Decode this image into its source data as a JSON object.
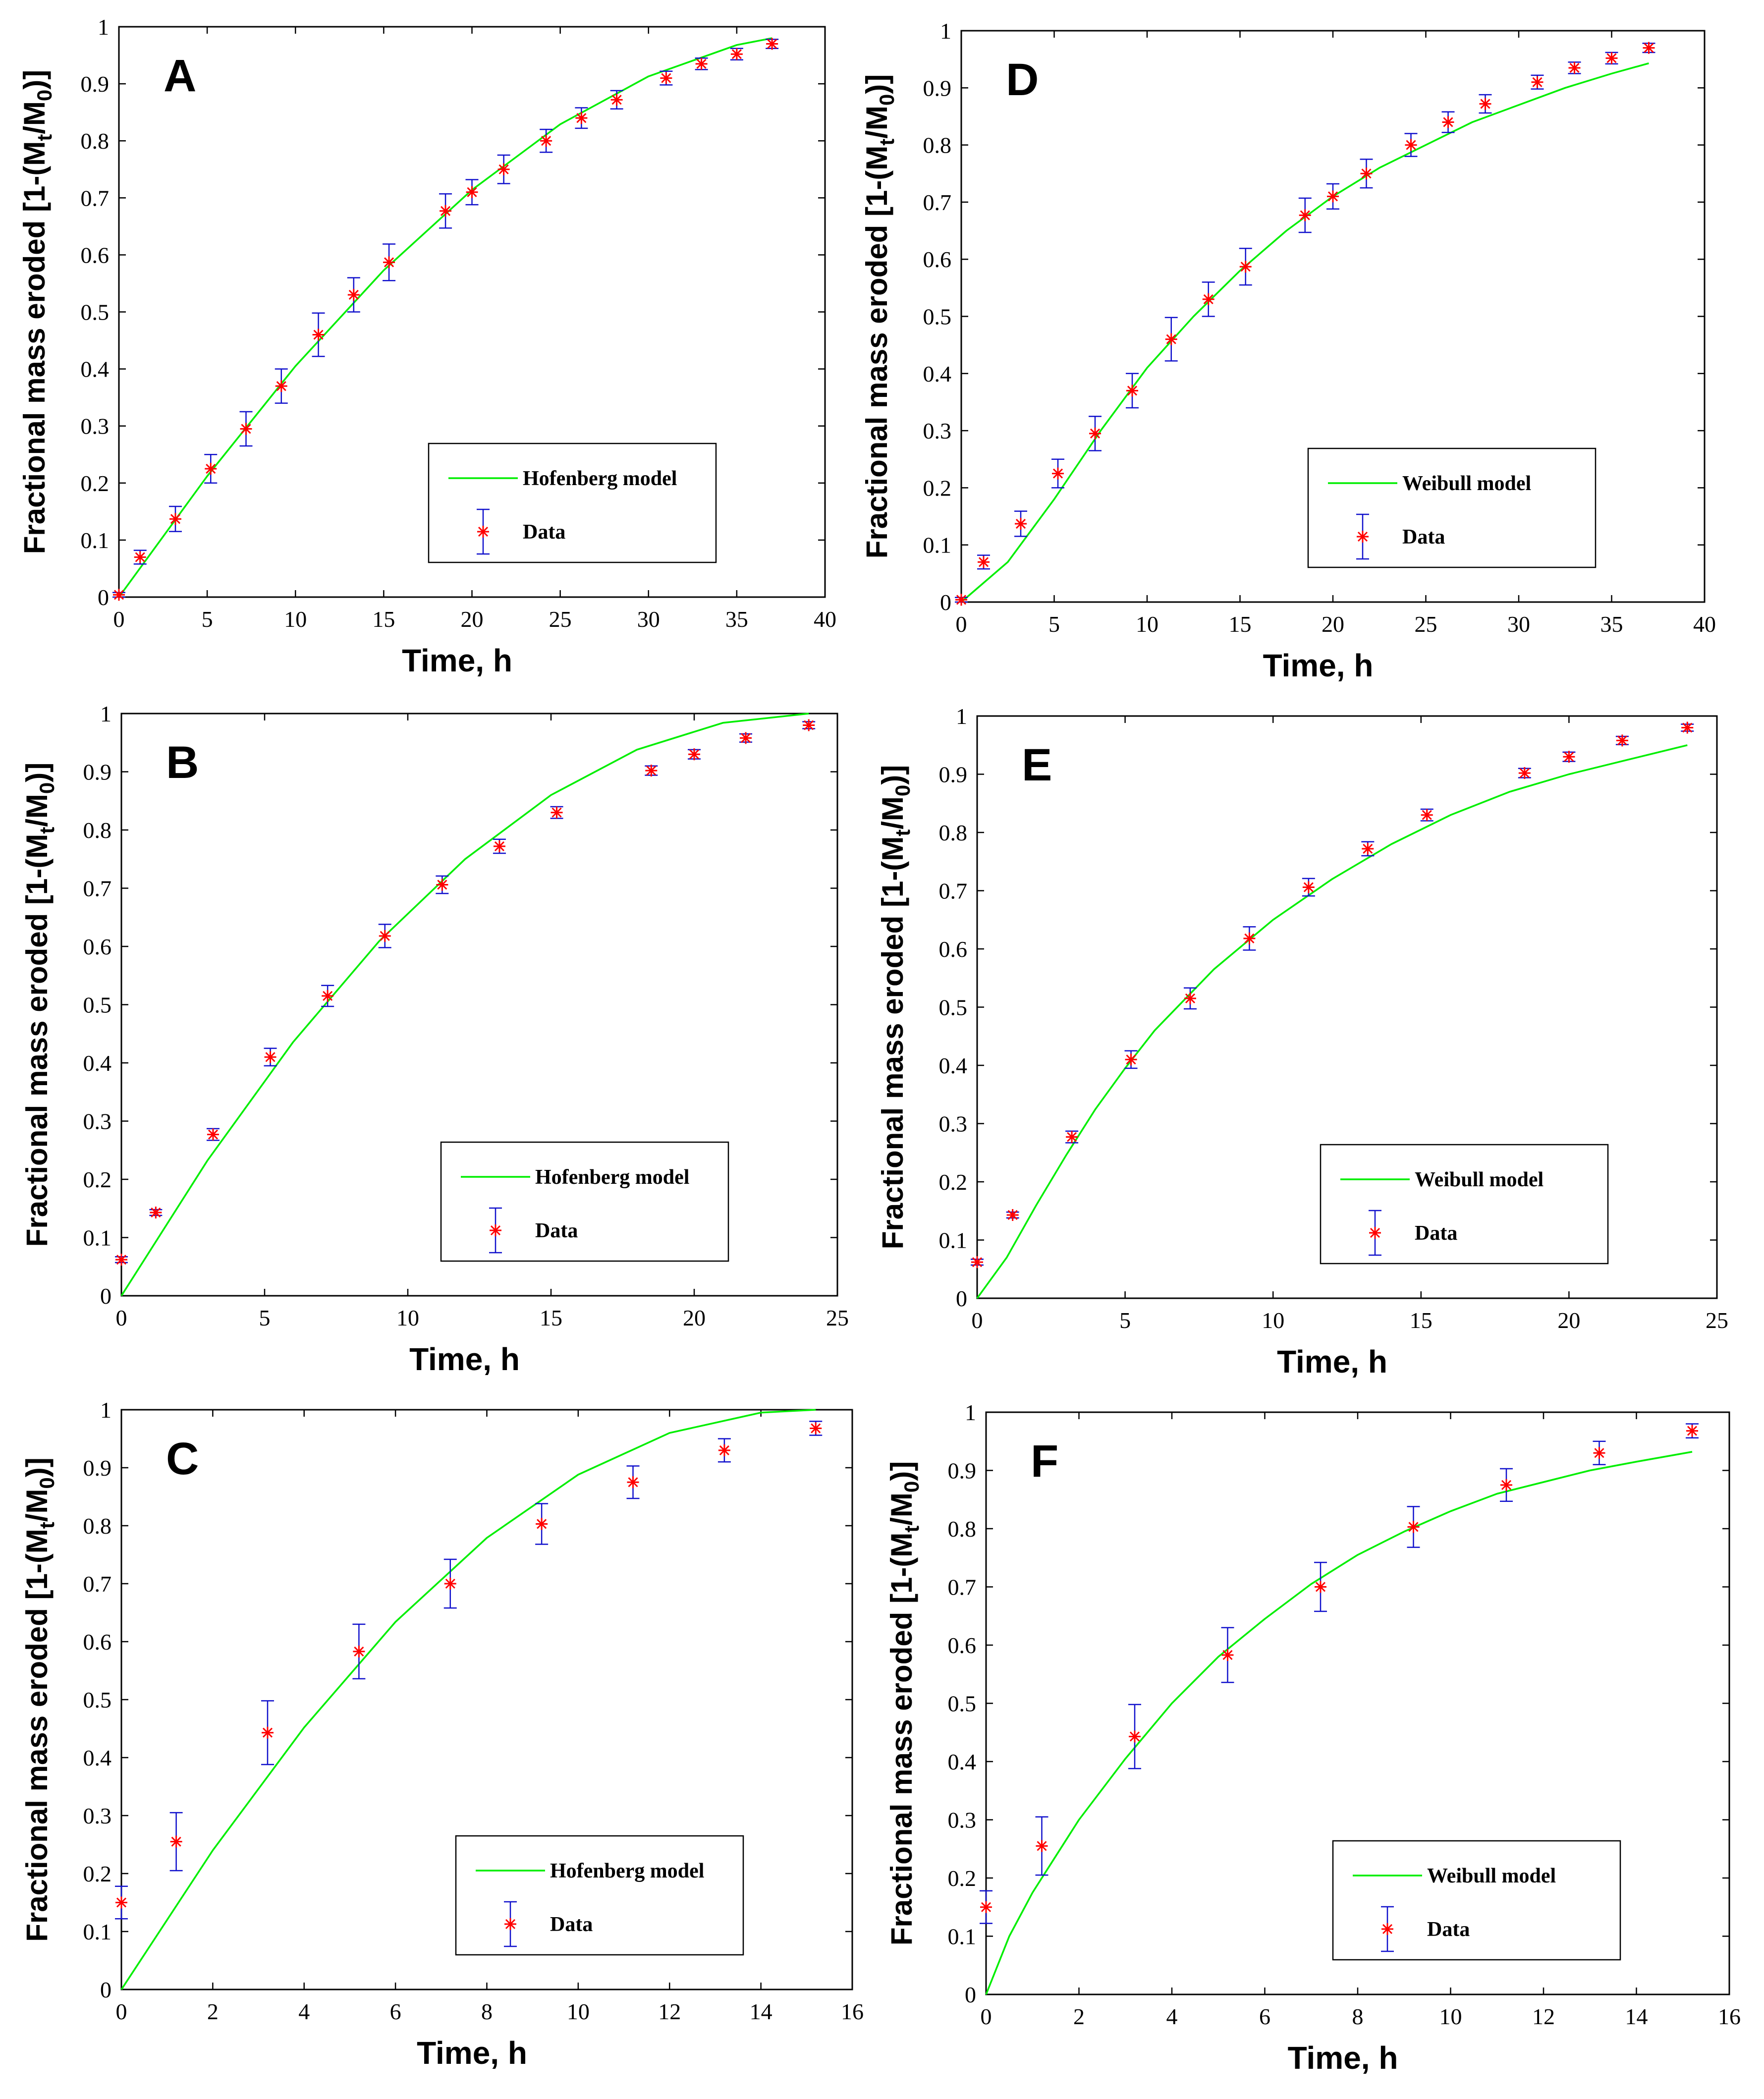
{
  "colors": {
    "model_line": "#00ee00",
    "data_marker": "#ff0000",
    "error_bar": "#1010cc",
    "axes": "#000000"
  },
  "chart_data": [
    {
      "type": "line",
      "panel_label": "A",
      "xlabel": "Time, h",
      "ylabel_main": "Fractional mass eroded [1-(M",
      "ylabel_sub1": "t",
      "ylabel_mid": "/M",
      "ylabel_sub2": "0",
      "ylabel_end": ")]",
      "xlim": [
        0,
        40
      ],
      "ylim": [
        0,
        1
      ],
      "xticks": [
        0,
        5,
        10,
        15,
        20,
        25,
        30,
        35,
        40
      ],
      "yticks": [
        0,
        0.1,
        0.2,
        0.3,
        0.4,
        0.5,
        0.6,
        0.7,
        0.8,
        0.9,
        1
      ],
      "legend_position": "lower-right",
      "model": {
        "name": "Hofenberg model",
        "x": [
          0,
          5,
          10,
          15,
          20,
          25,
          30,
          35,
          37
        ],
        "y": [
          0,
          0.212,
          0.405,
          0.573,
          0.714,
          0.829,
          0.913,
          0.968,
          0.98
        ]
      },
      "data": {
        "name": "Data",
        "x": [
          0,
          1.2,
          3.2,
          5.2,
          7.2,
          9.2,
          11.3,
          13.3,
          15.3,
          18.5,
          20,
          21.8,
          24.2,
          26.2,
          28.2,
          31,
          33,
          35,
          37
        ],
        "y": [
          0.004,
          0.07,
          0.137,
          0.225,
          0.295,
          0.37,
          0.46,
          0.53,
          0.587,
          0.677,
          0.71,
          0.75,
          0.8,
          0.84,
          0.872,
          0.91,
          0.935,
          0.952,
          0.97
        ],
        "err": [
          0.004,
          0.012,
          0.022,
          0.025,
          0.03,
          0.03,
          0.038,
          0.03,
          0.032,
          0.03,
          0.022,
          0.025,
          0.02,
          0.018,
          0.016,
          0.012,
          0.01,
          0.01,
          0.008
        ]
      }
    },
    {
      "type": "line",
      "panel_label": "B",
      "xlabel": "Time, h",
      "ylabel_main": "Fractional mass eroded [1-(M",
      "ylabel_sub1": "t",
      "ylabel_mid": "/M",
      "ylabel_sub2": "0",
      "ylabel_end": ")]",
      "xlim": [
        0,
        25
      ],
      "ylim": [
        0,
        1
      ],
      "xticks": [
        0,
        5,
        10,
        15,
        20,
        25
      ],
      "yticks": [
        0,
        0.1,
        0.2,
        0.3,
        0.4,
        0.5,
        0.6,
        0.7,
        0.8,
        0.9,
        1
      ],
      "legend_position": "lower-right",
      "model": {
        "name": "Hofenberg model",
        "x": [
          0,
          3,
          6,
          9,
          12,
          15,
          18,
          21,
          24
        ],
        "y": [
          0,
          0.232,
          0.436,
          0.609,
          0.75,
          0.86,
          0.938,
          0.984,
          1
        ]
      },
      "data": {
        "name": "Data",
        "x": [
          0,
          1.2,
          3.2,
          5.2,
          7.2,
          9.2,
          11.2,
          13.2,
          15.2,
          18.5,
          20,
          21.8,
          24
        ],
        "y": [
          0.062,
          0.143,
          0.277,
          0.41,
          0.515,
          0.618,
          0.706,
          0.772,
          0.83,
          0.902,
          0.93,
          0.958,
          0.98
        ],
        "err": [
          0.005,
          0.005,
          0.01,
          0.015,
          0.018,
          0.02,
          0.015,
          0.012,
          0.01,
          0.008,
          0.008,
          0.007,
          0.006
        ]
      }
    },
    {
      "type": "line",
      "panel_label": "C",
      "xlabel": "Time, h",
      "ylabel_main": "Fractional mass eroded [1-(M",
      "ylabel_sub1": "t",
      "ylabel_mid": "/M",
      "ylabel_sub2": "0",
      "ylabel_end": ")]",
      "xlim": [
        0,
        16
      ],
      "ylim": [
        0,
        1
      ],
      "xticks": [
        0,
        2,
        4,
        6,
        8,
        10,
        12,
        14,
        16
      ],
      "yticks": [
        0,
        0.1,
        0.2,
        0.3,
        0.4,
        0.5,
        0.6,
        0.7,
        0.8,
        0.9,
        1
      ],
      "legend_position": "lower-right",
      "model": {
        "name": "Hofenberg model",
        "x": [
          0,
          2,
          4,
          6,
          8,
          10,
          12,
          14,
          15.2
        ],
        "y": [
          0,
          0.24,
          0.452,
          0.634,
          0.779,
          0.888,
          0.96,
          0.995,
          1
        ]
      },
      "data": {
        "name": "Data",
        "x": [
          0,
          1.2,
          3.2,
          5.2,
          7.2,
          9.2,
          11.2,
          13.2,
          15.2
        ],
        "y": [
          0.15,
          0.255,
          0.443,
          0.583,
          0.7,
          0.803,
          0.875,
          0.93,
          0.968
        ],
        "err": [
          0.028,
          0.05,
          0.055,
          0.047,
          0.042,
          0.035,
          0.028,
          0.02,
          0.012
        ]
      }
    },
    {
      "type": "line",
      "panel_label": "D",
      "xlabel": "Time, h",
      "ylabel_main": "Fractional mass eroded [1-(M",
      "ylabel_sub1": "t",
      "ylabel_mid": "/M",
      "ylabel_sub2": "0",
      "ylabel_end": ")]",
      "xlim": [
        0,
        40
      ],
      "ylim": [
        0,
        1
      ],
      "xticks": [
        0,
        5,
        10,
        15,
        20,
        25,
        30,
        35,
        40
      ],
      "yticks": [
        0,
        0.1,
        0.2,
        0.3,
        0.4,
        0.5,
        0.6,
        0.7,
        0.8,
        0.9,
        1
      ],
      "legend_position": "lower-right",
      "model": {
        "name": "Weibull model",
        "x": [
          0,
          2.5,
          5,
          7.5,
          10,
          12.5,
          15,
          17.5,
          20,
          22.5,
          25,
          27.5,
          30,
          32.5,
          35,
          37
        ],
        "y": [
          0,
          0.07,
          0.18,
          0.3,
          0.41,
          0.5,
          0.58,
          0.65,
          0.71,
          0.76,
          0.8,
          0.84,
          0.87,
          0.9,
          0.925,
          0.943
        ]
      },
      "data": {
        "name": "Data",
        "x": [
          0,
          1.2,
          3.2,
          5.2,
          7.2,
          9.2,
          11.3,
          13.3,
          15.3,
          18.5,
          20,
          21.8,
          24.2,
          26.2,
          28.2,
          31,
          33,
          35,
          37
        ],
        "y": [
          0.004,
          0.07,
          0.137,
          0.225,
          0.295,
          0.37,
          0.46,
          0.53,
          0.587,
          0.677,
          0.71,
          0.75,
          0.8,
          0.84,
          0.872,
          0.91,
          0.935,
          0.952,
          0.97
        ],
        "err": [
          0.004,
          0.012,
          0.022,
          0.025,
          0.03,
          0.03,
          0.038,
          0.03,
          0.032,
          0.03,
          0.022,
          0.025,
          0.02,
          0.018,
          0.016,
          0.012,
          0.01,
          0.01,
          0.008
        ]
      }
    },
    {
      "type": "line",
      "panel_label": "E",
      "xlabel": "Time, h",
      "ylabel_main": "Fractional mass eroded [1-(M",
      "ylabel_sub1": "t",
      "ylabel_mid": "/M",
      "ylabel_sub2": "0",
      "ylabel_end": ")]",
      "xlim": [
        0,
        25
      ],
      "ylim": [
        0,
        1
      ],
      "xticks": [
        0,
        5,
        10,
        15,
        20,
        25
      ],
      "yticks": [
        0,
        0.1,
        0.2,
        0.3,
        0.4,
        0.5,
        0.6,
        0.7,
        0.8,
        0.9,
        1
      ],
      "legend_position": "lower-right",
      "model": {
        "name": "Weibull model",
        "x": [
          0,
          1,
          2,
          3,
          4,
          5,
          6,
          8,
          10,
          12,
          14,
          16,
          18,
          20,
          22,
          24
        ],
        "y": [
          0,
          0.07,
          0.16,
          0.245,
          0.325,
          0.395,
          0.46,
          0.565,
          0.65,
          0.72,
          0.78,
          0.83,
          0.87,
          0.9,
          0.925,
          0.95
        ]
      },
      "data": {
        "name": "Data",
        "x": [
          0,
          1.2,
          3.2,
          5.2,
          7.2,
          9.2,
          11.2,
          13.2,
          15.2,
          18.5,
          20,
          21.8,
          24
        ],
        "y": [
          0.062,
          0.143,
          0.277,
          0.41,
          0.515,
          0.618,
          0.706,
          0.772,
          0.83,
          0.902,
          0.93,
          0.958,
          0.98
        ],
        "err": [
          0.005,
          0.005,
          0.01,
          0.015,
          0.018,
          0.02,
          0.015,
          0.012,
          0.01,
          0.008,
          0.008,
          0.007,
          0.006
        ]
      }
    },
    {
      "type": "line",
      "panel_label": "F",
      "xlabel": "Time, h",
      "ylabel_main": "Fractional mass eroded [1-(M",
      "ylabel_sub1": "t",
      "ylabel_mid": "/M",
      "ylabel_sub2": "0",
      "ylabel_end": ")]",
      "xlim": [
        0,
        16
      ],
      "ylim": [
        0,
        1
      ],
      "xticks": [
        0,
        2,
        4,
        6,
        8,
        10,
        12,
        14,
        16
      ],
      "yticks": [
        0,
        0.1,
        0.2,
        0.3,
        0.4,
        0.5,
        0.6,
        0.7,
        0.8,
        0.9,
        1
      ],
      "legend_position": "lower-right",
      "model": {
        "name": "Weibull model",
        "x": [
          0,
          0.5,
          1,
          2,
          3,
          4,
          5,
          6,
          7,
          8,
          9,
          10,
          11,
          12,
          13,
          14,
          15.2
        ],
        "y": [
          0,
          0.1,
          0.175,
          0.3,
          0.405,
          0.5,
          0.58,
          0.645,
          0.705,
          0.755,
          0.795,
          0.83,
          0.86,
          0.88,
          0.9,
          0.915,
          0.932
        ]
      },
      "data": {
        "name": "Data",
        "x": [
          0,
          1.2,
          3.2,
          5.2,
          7.2,
          9.2,
          11.2,
          13.2,
          15.2
        ],
        "y": [
          0.15,
          0.255,
          0.443,
          0.583,
          0.7,
          0.803,
          0.875,
          0.93,
          0.968
        ],
        "err": [
          0.028,
          0.05,
          0.055,
          0.047,
          0.042,
          0.035,
          0.028,
          0.02,
          0.012
        ]
      }
    }
  ]
}
